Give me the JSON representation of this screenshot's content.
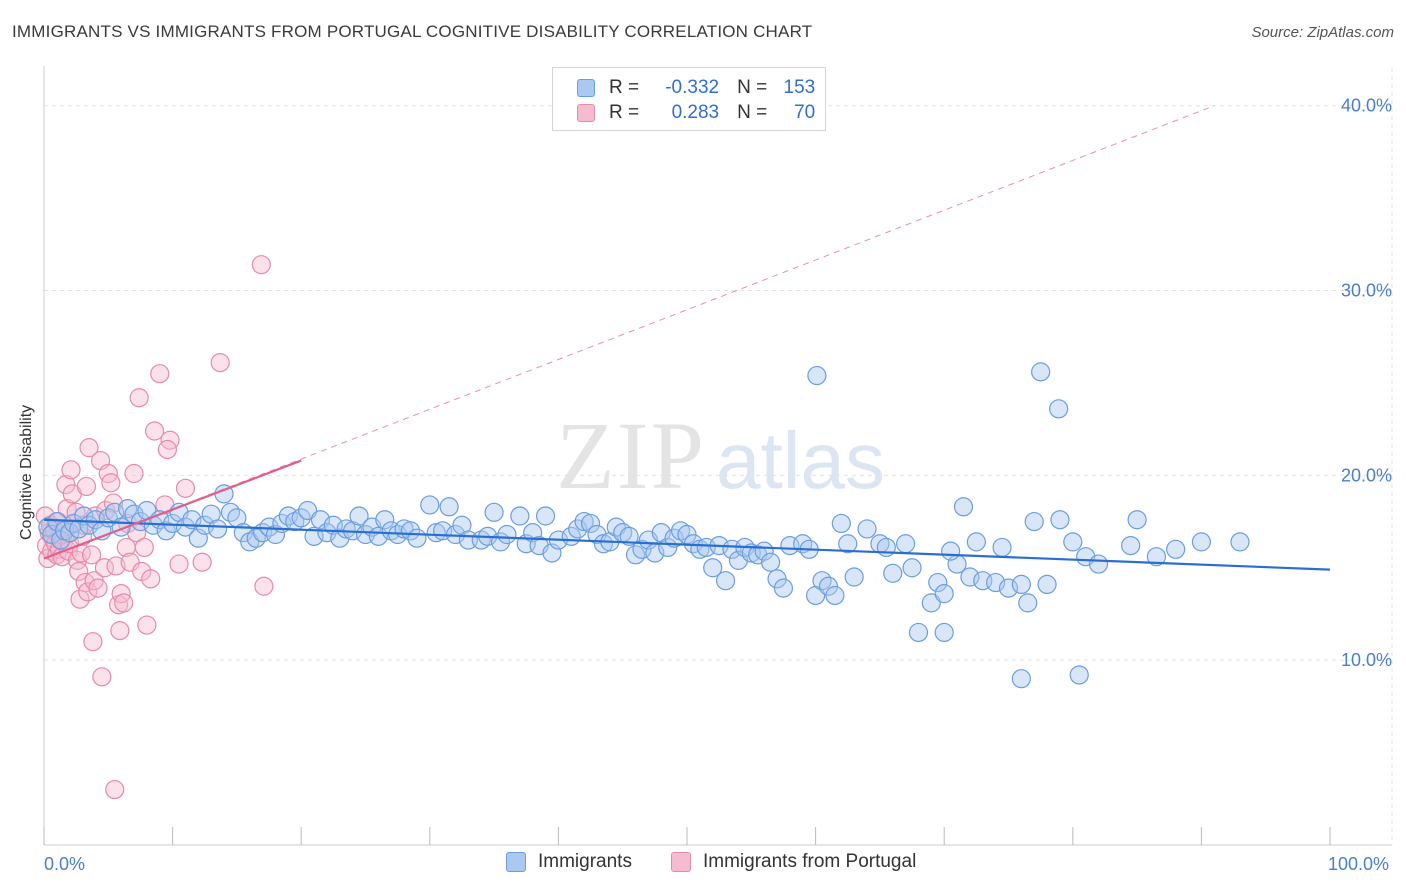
{
  "title": "IMMIGRANTS VS IMMIGRANTS FROM PORTUGAL COGNITIVE DISABILITY CORRELATION CHART",
  "source": "Source: ZipAtlas.com",
  "watermark": {
    "zip": "ZIP",
    "atlas": "atlas"
  },
  "colors": {
    "blue_fill": "#aac8f0",
    "blue_stroke": "#6a9ee0",
    "blue_line": "#2a6fd0",
    "pink_fill": "#f5bcd0",
    "pink_stroke": "#e88aa8",
    "pink_line": "#e0608a",
    "axis_text": "#4a7fd0",
    "grid": "#e3e3e3"
  },
  "legend": {
    "rows": [
      {
        "r_label": "R =",
        "r_value": "-0.332",
        "n_label": "N =",
        "n_value": "153",
        "series": "Immigrants"
      },
      {
        "r_label": "R =",
        "r_value": "0.283",
        "n_label": "N =",
        "n_value": "70",
        "series": "Immigrants from Portugal"
      }
    ]
  },
  "chart_data": {
    "type": "scatter",
    "title": "IMMIGRANTS VS IMMIGRANTS FROM PORTUGAL COGNITIVE DISABILITY CORRELATION CHART",
    "xlabel": "",
    "ylabel": "Cognitive Disability",
    "xlim": [
      0,
      100
    ],
    "ylim": [
      0,
      41.5
    ],
    "x_tick_labels": [
      "0.0%",
      "100.0%"
    ],
    "y_ticks": [
      10,
      20,
      30,
      40
    ],
    "y_tick_labels": [
      "10.0%",
      "20.0%",
      "30.0%",
      "40.0%"
    ],
    "grid": true,
    "legend_position": "bottom",
    "series": [
      {
        "name": "Immigrants",
        "color": "#6a9ee0",
        "r": -0.332,
        "n": 153,
        "trend": {
          "x": [
            0,
            100
          ],
          "y": [
            17.6,
            14.9
          ]
        },
        "points": [
          [
            0.3,
            17.2
          ],
          [
            0.6,
            16.8
          ],
          [
            1.0,
            17.5
          ],
          [
            1.3,
            16.5
          ],
          [
            1.6,
            17.0
          ],
          [
            2.0,
            16.9
          ],
          [
            2.3,
            17.4
          ],
          [
            2.7,
            17.1
          ],
          [
            3.1,
            17.8
          ],
          [
            3.5,
            17.3
          ],
          [
            4.0,
            17.6
          ],
          [
            4.5,
            17.0
          ],
          [
            5.0,
            17.7
          ],
          [
            5.5,
            18.0
          ],
          [
            6.0,
            17.2
          ],
          [
            6.5,
            18.2
          ],
          [
            7.0,
            17.9
          ],
          [
            7.5,
            17.5
          ],
          [
            8.0,
            18.1
          ],
          [
            8.5,
            17.3
          ],
          [
            9.0,
            17.6
          ],
          [
            9.5,
            17.0
          ],
          [
            10.0,
            17.4
          ],
          [
            10.5,
            18.0
          ],
          [
            11.0,
            17.2
          ],
          [
            11.5,
            17.6
          ],
          [
            12.0,
            16.6
          ],
          [
            12.5,
            17.3
          ],
          [
            13.0,
            17.9
          ],
          [
            13.5,
            17.1
          ],
          [
            14.0,
            19.0
          ],
          [
            14.5,
            18.0
          ],
          [
            15.0,
            17.7
          ],
          [
            15.5,
            16.9
          ],
          [
            16.0,
            16.4
          ],
          [
            16.5,
            16.6
          ],
          [
            17.0,
            16.9
          ],
          [
            17.5,
            17.2
          ],
          [
            18.0,
            16.8
          ],
          [
            18.5,
            17.4
          ],
          [
            19.0,
            17.8
          ],
          [
            19.5,
            17.5
          ],
          [
            20.0,
            17.7
          ],
          [
            20.5,
            18.1
          ],
          [
            21.0,
            16.7
          ],
          [
            21.5,
            17.6
          ],
          [
            22.0,
            16.9
          ],
          [
            22.5,
            17.3
          ],
          [
            23.0,
            16.6
          ],
          [
            23.5,
            17.1
          ],
          [
            24.0,
            17.0
          ],
          [
            24.5,
            17.8
          ],
          [
            25.0,
            16.8
          ],
          [
            25.5,
            17.2
          ],
          [
            26.0,
            16.7
          ],
          [
            26.5,
            17.6
          ],
          [
            27.0,
            17.0
          ],
          [
            27.5,
            16.8
          ],
          [
            28.0,
            17.1
          ],
          [
            28.5,
            17.0
          ],
          [
            29.0,
            16.6
          ],
          [
            30.0,
            18.4
          ],
          [
            30.5,
            16.9
          ],
          [
            31.0,
            17.0
          ],
          [
            31.5,
            18.3
          ],
          [
            32.0,
            16.8
          ],
          [
            32.5,
            17.3
          ],
          [
            33.0,
            16.5
          ],
          [
            34.0,
            16.5
          ],
          [
            34.5,
            16.7
          ],
          [
            35.0,
            18.0
          ],
          [
            35.5,
            16.4
          ],
          [
            36.0,
            16.8
          ],
          [
            37.0,
            17.8
          ],
          [
            37.5,
            16.3
          ],
          [
            38.0,
            16.9
          ],
          [
            38.5,
            16.2
          ],
          [
            39.0,
            17.8
          ],
          [
            39.5,
            15.8
          ],
          [
            40.0,
            16.5
          ],
          [
            41.0,
            16.7
          ],
          [
            41.5,
            17.1
          ],
          [
            42.0,
            17.5
          ],
          [
            42.5,
            17.4
          ],
          [
            43.0,
            16.8
          ],
          [
            43.5,
            16.3
          ],
          [
            44.0,
            16.4
          ],
          [
            44.5,
            17.2
          ],
          [
            45.0,
            16.9
          ],
          [
            45.5,
            16.7
          ],
          [
            46.0,
            15.7
          ],
          [
            46.5,
            16.0
          ],
          [
            47.0,
            16.5
          ],
          [
            47.5,
            15.8
          ],
          [
            48.0,
            16.9
          ],
          [
            48.5,
            16.1
          ],
          [
            49.0,
            16.6
          ],
          [
            49.5,
            17.0
          ],
          [
            50.0,
            16.8
          ],
          [
            50.5,
            16.3
          ],
          [
            51.0,
            16.0
          ],
          [
            51.5,
            16.1
          ],
          [
            52.0,
            15.0
          ],
          [
            52.5,
            16.2
          ],
          [
            53.0,
            14.3
          ],
          [
            53.5,
            16.0
          ],
          [
            54.0,
            15.4
          ],
          [
            54.5,
            16.1
          ],
          [
            55.0,
            15.8
          ],
          [
            55.5,
            15.7
          ],
          [
            56.0,
            15.9
          ],
          [
            56.5,
            15.3
          ],
          [
            57.0,
            14.4
          ],
          [
            57.5,
            13.9
          ],
          [
            58.0,
            16.2
          ],
          [
            59.0,
            16.3
          ],
          [
            59.5,
            16.0
          ],
          [
            60.0,
            13.5
          ],
          [
            60.5,
            14.3
          ],
          [
            61.0,
            14.0
          ],
          [
            61.5,
            13.5
          ],
          [
            62.0,
            17.4
          ],
          [
            62.5,
            16.3
          ],
          [
            63.0,
            14.5
          ],
          [
            64.0,
            17.1
          ],
          [
            65.0,
            16.3
          ],
          [
            65.5,
            16.1
          ],
          [
            66.0,
            14.7
          ],
          [
            67.0,
            16.3
          ],
          [
            67.5,
            15.0
          ],
          [
            68.0,
            11.5
          ],
          [
            69.0,
            13.1
          ],
          [
            69.5,
            14.2
          ],
          [
            70.0,
            13.6
          ],
          [
            71.0,
            15.2
          ],
          [
            71.5,
            18.3
          ],
          [
            72.0,
            14.5
          ],
          [
            73.0,
            14.3
          ],
          [
            74.0,
            14.2
          ],
          [
            75.0,
            13.9
          ],
          [
            76.0,
            14.1
          ],
          [
            77.0,
            17.5
          ],
          [
            78.0,
            14.1
          ],
          [
            79.0,
            17.6
          ],
          [
            80.0,
            16.4
          ],
          [
            81.0,
            15.6
          ],
          [
            82.0,
            15.2
          ],
          [
            85.0,
            17.6
          ],
          [
            90.0,
            16.4
          ],
          [
            93.0,
            16.4
          ],
          [
            60.1,
            25.4
          ],
          [
            77.5,
            25.6
          ],
          [
            78.9,
            23.6
          ],
          [
            70.0,
            11.5
          ],
          [
            80.5,
            9.2
          ],
          [
            76.0,
            9.0
          ],
          [
            70.5,
            15.9
          ],
          [
            72.5,
            16.4
          ],
          [
            74.5,
            16.1
          ],
          [
            76.5,
            13.1
          ],
          [
            84.5,
            16.2
          ],
          [
            86.5,
            15.6
          ],
          [
            88.0,
            16.0
          ]
        ]
      },
      {
        "name": "Immigrants from Portugal",
        "color": "#e88aa8",
        "r": 0.283,
        "n": 70,
        "trend": {
          "x": [
            0,
            20
          ],
          "y": [
            15.5,
            20.8
          ]
        },
        "trend_extended": {
          "x": [
            0,
            91
          ],
          "y": [
            15.5,
            40.0
          ]
        },
        "points": [
          [
            0.1,
            17.8
          ],
          [
            0.2,
            16.2
          ],
          [
            0.3,
            15.5
          ],
          [
            0.4,
            16.9
          ],
          [
            0.5,
            17.3
          ],
          [
            0.6,
            15.9
          ],
          [
            0.7,
            16.6
          ],
          [
            0.8,
            17.0
          ],
          [
            0.9,
            16.3
          ],
          [
            1.0,
            15.7
          ],
          [
            1.1,
            17.5
          ],
          [
            1.2,
            16.0
          ],
          [
            1.3,
            16.8
          ],
          [
            1.4,
            15.6
          ],
          [
            1.5,
            16.4
          ],
          [
            1.6,
            17.1
          ],
          [
            1.7,
            19.5
          ],
          [
            1.8,
            18.2
          ],
          [
            1.9,
            15.9
          ],
          [
            2.0,
            16.3
          ],
          [
            2.1,
            20.3
          ],
          [
            2.2,
            19.0
          ],
          [
            2.3,
            17.4
          ],
          [
            2.5,
            18.0
          ],
          [
            2.6,
            15.4
          ],
          [
            2.7,
            14.8
          ],
          [
            2.8,
            13.3
          ],
          [
            2.9,
            15.8
          ],
          [
            3.0,
            16.7
          ],
          [
            3.1,
            17.3
          ],
          [
            3.2,
            14.2
          ],
          [
            3.3,
            19.4
          ],
          [
            3.4,
            13.7
          ],
          [
            3.5,
            21.5
          ],
          [
            3.7,
            15.7
          ],
          [
            3.8,
            11.0
          ],
          [
            3.9,
            14.3
          ],
          [
            4.0,
            17.8
          ],
          [
            4.2,
            13.9
          ],
          [
            4.4,
            20.8
          ],
          [
            4.5,
            9.1
          ],
          [
            4.7,
            15.0
          ],
          [
            4.8,
            18.1
          ],
          [
            5.0,
            20.1
          ],
          [
            5.2,
            19.6
          ],
          [
            5.4,
            18.5
          ],
          [
            5.6,
            15.1
          ],
          [
            5.8,
            13.0
          ],
          [
            5.9,
            11.6
          ],
          [
            6.0,
            13.6
          ],
          [
            6.2,
            13.1
          ],
          [
            6.4,
            16.1
          ],
          [
            6.5,
            17.4
          ],
          [
            6.7,
            15.3
          ],
          [
            7.0,
            20.1
          ],
          [
            7.2,
            16.9
          ],
          [
            7.4,
            24.2
          ],
          [
            7.6,
            14.8
          ],
          [
            7.8,
            16.1
          ],
          [
            8.0,
            11.9
          ],
          [
            8.3,
            14.4
          ],
          [
            8.6,
            22.4
          ],
          [
            9.0,
            25.5
          ],
          [
            9.4,
            18.4
          ],
          [
            9.8,
            21.9
          ],
          [
            10.5,
            15.2
          ],
          [
            11.0,
            19.3
          ],
          [
            13.7,
            26.1
          ],
          [
            16.9,
            31.4
          ],
          [
            17.1,
            14.0
          ]
        ]
      }
    ]
  },
  "extra_pink_points": [
    [
      12.3,
      15.3
    ],
    [
      5.5,
      3.0
    ],
    [
      9.6,
      21.4
    ]
  ]
}
